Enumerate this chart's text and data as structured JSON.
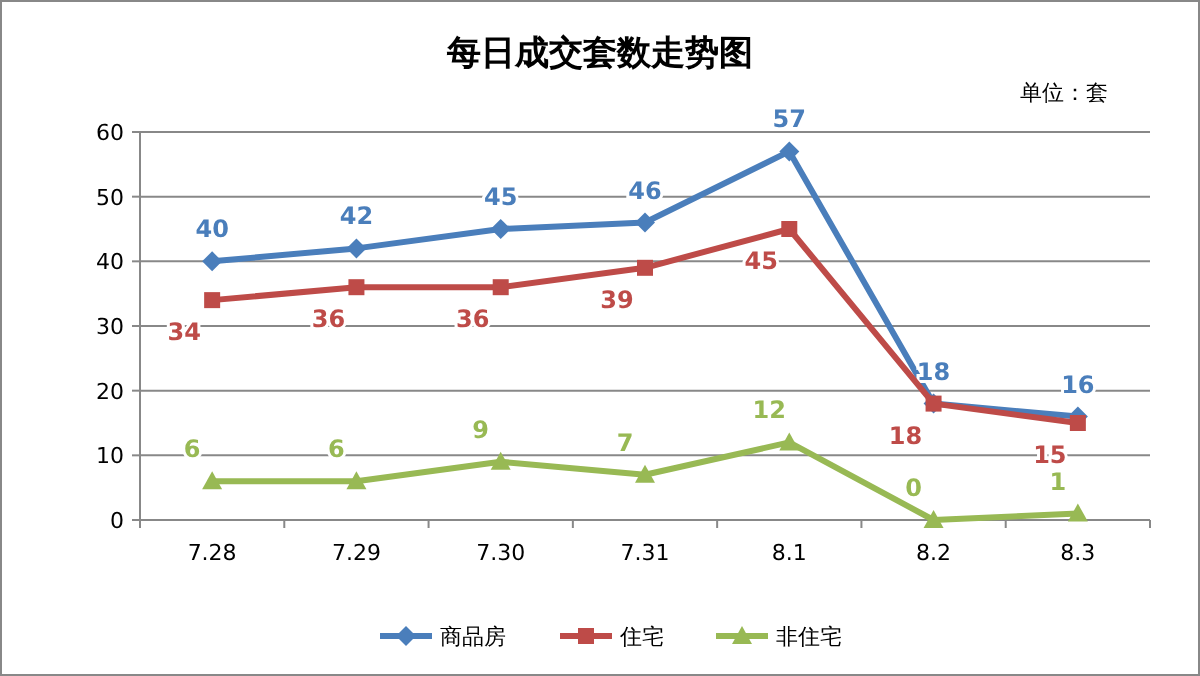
{
  "chart_data": {
    "type": "line",
    "title": "每日成交套数走势图",
    "annotations": [
      "单位：套"
    ],
    "categories": [
      "7.28",
      "7.29",
      "7.30",
      "7.31",
      "8.1",
      "8.2",
      "8.3"
    ],
    "series": [
      {
        "name": "商品房",
        "color": "#4a7ebb",
        "marker": "diamond",
        "values": [
          40,
          42,
          45,
          46,
          57,
          18,
          16
        ]
      },
      {
        "name": "住宅",
        "color": "#be4b48",
        "marker": "square",
        "values": [
          34,
          36,
          36,
          39,
          45,
          18,
          15
        ]
      },
      {
        "name": "非住宅",
        "color": "#98b954",
        "marker": "triangle",
        "values": [
          6,
          6,
          9,
          7,
          12,
          0,
          1
        ]
      }
    ],
    "ylim": [
      0,
      60
    ],
    "yticks": [
      0,
      10,
      20,
      30,
      40,
      50,
      60
    ],
    "grid": "y",
    "legend": "bottom",
    "data_labels": true
  }
}
